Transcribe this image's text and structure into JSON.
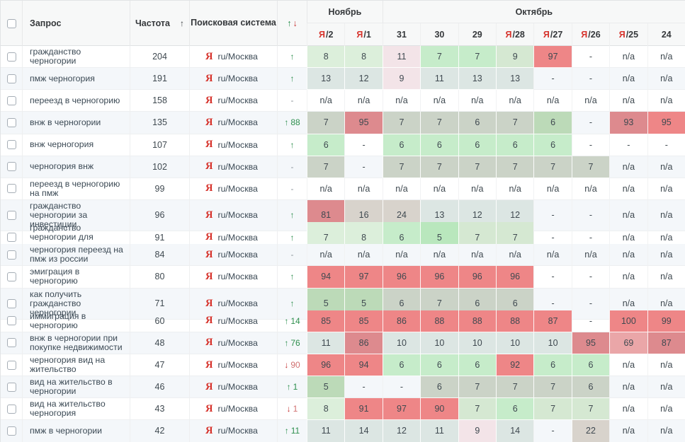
{
  "header": {
    "query_label": "Запрос",
    "frequency_label": "Частота",
    "frequency_sort_icon": "↑",
    "search_engine_label": "Поисковая система",
    "change_up_icon": "↑",
    "change_down_icon": "↓",
    "month_groups": [
      {
        "label": "Ноябрь",
        "span": 2
      },
      {
        "label": "Октябрь",
        "span": 8
      }
    ],
    "dates": [
      {
        "engine_prefix": "Я",
        "day": "/2"
      },
      {
        "engine_prefix": "Я",
        "day": "/1"
      },
      {
        "engine_prefix": "",
        "day": "31"
      },
      {
        "engine_prefix": "",
        "day": "30"
      },
      {
        "engine_prefix": "",
        "day": "29"
      },
      {
        "engine_prefix": "Я",
        "day": "/28"
      },
      {
        "engine_prefix": "Я",
        "day": "/27"
      },
      {
        "engine_prefix": "Я",
        "day": "/26"
      },
      {
        "engine_prefix": "Я",
        "day": "/25"
      },
      {
        "engine_prefix": "",
        "day": "24"
      }
    ]
  },
  "search_engine": {
    "icon": "Я",
    "region": "ru/Москва"
  },
  "colors": {
    "yandex_red": "#d6332c",
    "change_up_green": "#2e8f4e",
    "change_down_red": "#c43131",
    "cell_green_bright": "#b9e7bd",
    "cell_green_mint": "#c6ecca",
    "cell_green_pale": "#dcefdb",
    "cell_green_gray": "#cbd3c7",
    "cell_red": "#ee8687",
    "cell_red_muted": "#dd8a8e",
    "cell_red_light": "#eaa6a8",
    "cell_pink_pale": "#f3e4e8",
    "cell_blue_gray": "#dce6e3",
    "cell_gray_tan": "#d8d3cc",
    "row_stripe": "#f4f7fa"
  },
  "rows": [
    {
      "query": "гражданство черногории",
      "frequency": "204",
      "change": {
        "dir": "up",
        "symbol": "↑",
        "value": ""
      },
      "cells": [
        [
          "8",
          "g2"
        ],
        [
          "8",
          "g2"
        ],
        [
          "11",
          "p1"
        ],
        [
          "7",
          "g1"
        ],
        [
          "7",
          "g1"
        ],
        [
          "9",
          "g4"
        ],
        [
          "97",
          "r1"
        ],
        [
          "-",
          "w"
        ],
        [
          "n/a",
          "w"
        ],
        [
          "n/a",
          "w"
        ]
      ]
    },
    {
      "query": "пмж черногория",
      "frequency": "191",
      "change": {
        "dir": "up",
        "symbol": "↑",
        "value": ""
      },
      "cells": [
        [
          "13",
          "b1"
        ],
        [
          "12",
          "b1"
        ],
        [
          "9",
          "p1"
        ],
        [
          "11",
          "b1"
        ],
        [
          "13",
          "b1"
        ],
        [
          "13",
          "b1"
        ],
        [
          "-",
          "w"
        ],
        [
          "-",
          "w"
        ],
        [
          "n/a",
          "w"
        ],
        [
          "n/a",
          "w"
        ]
      ]
    },
    {
      "query": "переезд в черногорию",
      "frequency": "158",
      "change": {
        "dir": "none",
        "symbol": "-",
        "value": ""
      },
      "cells": [
        [
          "n/a",
          "w"
        ],
        [
          "n/a",
          "w"
        ],
        [
          "n/a",
          "w"
        ],
        [
          "n/a",
          "w"
        ],
        [
          "n/a",
          "w"
        ],
        [
          "n/a",
          "w"
        ],
        [
          "n/a",
          "w"
        ],
        [
          "n/a",
          "w"
        ],
        [
          "n/a",
          "w"
        ],
        [
          "n/a",
          "w"
        ]
      ]
    },
    {
      "query": "внж в черногории",
      "frequency": "135",
      "change": {
        "dir": "up",
        "symbol": "↑",
        "value": "88"
      },
      "cells": [
        [
          "7",
          "g3"
        ],
        [
          "95",
          "r2"
        ],
        [
          "7",
          "g3"
        ],
        [
          "7",
          "g3"
        ],
        [
          "6",
          "g3"
        ],
        [
          "7",
          "g3"
        ],
        [
          "6",
          "g5"
        ],
        [
          "-",
          "w"
        ],
        [
          "93",
          "r2"
        ],
        [
          "95",
          "r1"
        ]
      ]
    },
    {
      "query": "внж черногория",
      "frequency": "107",
      "change": {
        "dir": "up",
        "symbol": "↑",
        "value": ""
      },
      "cells": [
        [
          "6",
          "g1"
        ],
        [
          "-",
          "w"
        ],
        [
          "6",
          "g1"
        ],
        [
          "6",
          "g1"
        ],
        [
          "6",
          "g1"
        ],
        [
          "6",
          "g1"
        ],
        [
          "6",
          "g1"
        ],
        [
          "-",
          "w"
        ],
        [
          "-",
          "w"
        ],
        [
          "-",
          "w"
        ]
      ]
    },
    {
      "query": "черногория внж",
      "frequency": "102",
      "change": {
        "dir": "none",
        "symbol": "-",
        "value": ""
      },
      "cells": [
        [
          "7",
          "g3"
        ],
        [
          "-",
          "w"
        ],
        [
          "7",
          "g3"
        ],
        [
          "7",
          "g3"
        ],
        [
          "7",
          "g3"
        ],
        [
          "7",
          "g3"
        ],
        [
          "7",
          "g3"
        ],
        [
          "7",
          "g3"
        ],
        [
          "n/a",
          "w"
        ],
        [
          "n/a",
          "w"
        ]
      ]
    },
    {
      "query": "переезд в черногорию на пмж",
      "frequency": "99",
      "change": {
        "dir": "none",
        "symbol": "-",
        "value": ""
      },
      "cells": [
        [
          "n/a",
          "w"
        ],
        [
          "n/a",
          "w"
        ],
        [
          "n/a",
          "w"
        ],
        [
          "n/a",
          "w"
        ],
        [
          "n/a",
          "w"
        ],
        [
          "n/a",
          "w"
        ],
        [
          "n/a",
          "w"
        ],
        [
          "n/a",
          "w"
        ],
        [
          "n/a",
          "w"
        ],
        [
          "n/a",
          "w"
        ]
      ]
    },
    {
      "query": "гражданство черногории за инвестиции",
      "frequency": "96",
      "change": {
        "dir": "up",
        "symbol": "↑",
        "value": ""
      },
      "cells": [
        [
          "81",
          "r2"
        ],
        [
          "16",
          "gr"
        ],
        [
          "24",
          "gr"
        ],
        [
          "13",
          "b1"
        ],
        [
          "12",
          "b1"
        ],
        [
          "12",
          "b1"
        ],
        [
          "-",
          "w"
        ],
        [
          "-",
          "w"
        ],
        [
          "n/a",
          "w"
        ],
        [
          "n/a",
          "w"
        ]
      ]
    },
    {
      "query": "гражданство черногории для россиян",
      "frequency": "91",
      "change": {
        "dir": "up",
        "symbol": "↑",
        "value": ""
      },
      "cells": [
        [
          "7",
          "g2"
        ],
        [
          "8",
          "g2"
        ],
        [
          "6",
          "g1"
        ],
        [
          "5",
          "g0"
        ],
        [
          "7",
          "g4"
        ],
        [
          "7",
          "g4"
        ],
        [
          "-",
          "w"
        ],
        [
          "-",
          "w"
        ],
        [
          "n/a",
          "w"
        ],
        [
          "n/a",
          "w"
        ]
      ]
    },
    {
      "query": "черногория переезд на пмж из россии",
      "frequency": "84",
      "change": {
        "dir": "none",
        "symbol": "-",
        "value": ""
      },
      "cells": [
        [
          "n/a",
          "w"
        ],
        [
          "n/a",
          "w"
        ],
        [
          "n/a",
          "w"
        ],
        [
          "n/a",
          "w"
        ],
        [
          "n/a",
          "w"
        ],
        [
          "n/a",
          "w"
        ],
        [
          "n/a",
          "w"
        ],
        [
          "n/a",
          "w"
        ],
        [
          "n/a",
          "w"
        ],
        [
          "n/a",
          "w"
        ]
      ]
    },
    {
      "query": "эмиграция в черногорию",
      "frequency": "80",
      "change": {
        "dir": "up",
        "symbol": "↑",
        "value": ""
      },
      "cells": [
        [
          "94",
          "r1"
        ],
        [
          "97",
          "r1"
        ],
        [
          "96",
          "r1"
        ],
        [
          "96",
          "r1"
        ],
        [
          "96",
          "r1"
        ],
        [
          "96",
          "r1"
        ],
        [
          "-",
          "w"
        ],
        [
          "-",
          "w"
        ],
        [
          "n/a",
          "w"
        ],
        [
          "n/a",
          "w"
        ]
      ]
    },
    {
      "query": "как получить гражданство черногории",
      "frequency": "71",
      "change": {
        "dir": "up",
        "symbol": "↑",
        "value": ""
      },
      "cells": [
        [
          "5",
          "g5"
        ],
        [
          "5",
          "g5"
        ],
        [
          "6",
          "g3"
        ],
        [
          "7",
          "g3"
        ],
        [
          "6",
          "g3"
        ],
        [
          "6",
          "g3"
        ],
        [
          "-",
          "w"
        ],
        [
          "-",
          "w"
        ],
        [
          "n/a",
          "w"
        ],
        [
          "n/a",
          "w"
        ]
      ]
    },
    {
      "query": "иммиграция в черногорию",
      "frequency": "60",
      "change": {
        "dir": "up",
        "symbol": "↑",
        "value": "14"
      },
      "cells": [
        [
          "85",
          "r1"
        ],
        [
          "85",
          "r1"
        ],
        [
          "86",
          "r1"
        ],
        [
          "88",
          "r1"
        ],
        [
          "88",
          "r1"
        ],
        [
          "88",
          "r1"
        ],
        [
          "87",
          "r1"
        ],
        [
          "-",
          "w"
        ],
        [
          "100",
          "r1"
        ],
        [
          "99",
          "r1"
        ]
      ]
    },
    {
      "query": "внж в черногории при покупке недвижимости",
      "frequency": "48",
      "change": {
        "dir": "up",
        "symbol": "↑",
        "value": "76"
      },
      "cells": [
        [
          "11",
          "b1"
        ],
        [
          "86",
          "r2"
        ],
        [
          "10",
          "b1"
        ],
        [
          "10",
          "b1"
        ],
        [
          "10",
          "b1"
        ],
        [
          "10",
          "b1"
        ],
        [
          "10",
          "b1"
        ],
        [
          "95",
          "r2"
        ],
        [
          "69",
          "r3"
        ],
        [
          "87",
          "r2"
        ]
      ]
    },
    {
      "query": "черногория вид на жительство",
      "frequency": "47",
      "change": {
        "dir": "down",
        "symbol": "↓",
        "value": "90"
      },
      "cells": [
        [
          "96",
          "r1"
        ],
        [
          "94",
          "r1"
        ],
        [
          "6",
          "g1"
        ],
        [
          "6",
          "g1"
        ],
        [
          "6",
          "g1"
        ],
        [
          "92",
          "r1"
        ],
        [
          "6",
          "g1"
        ],
        [
          "6",
          "g1"
        ],
        [
          "n/a",
          "w"
        ],
        [
          "n/a",
          "w"
        ]
      ]
    },
    {
      "query": "вид на жительство в черногории",
      "frequency": "46",
      "change": {
        "dir": "up",
        "symbol": "↑",
        "value": "1"
      },
      "cells": [
        [
          "5",
          "g5"
        ],
        [
          "-",
          "w"
        ],
        [
          "-",
          "w"
        ],
        [
          "6",
          "g3"
        ],
        [
          "7",
          "g3"
        ],
        [
          "7",
          "g3"
        ],
        [
          "7",
          "g3"
        ],
        [
          "6",
          "g3"
        ],
        [
          "n/a",
          "w"
        ],
        [
          "n/a",
          "w"
        ]
      ]
    },
    {
      "query": "вид на жительство черногория",
      "frequency": "43",
      "change": {
        "dir": "down",
        "symbol": "↓",
        "value": "1"
      },
      "cells": [
        [
          "8",
          "g2"
        ],
        [
          "91",
          "r1"
        ],
        [
          "97",
          "r1"
        ],
        [
          "90",
          "r1"
        ],
        [
          "7",
          "g4"
        ],
        [
          "6",
          "g1"
        ],
        [
          "7",
          "g4"
        ],
        [
          "7",
          "g4"
        ],
        [
          "n/a",
          "w"
        ],
        [
          "n/a",
          "w"
        ]
      ]
    },
    {
      "query": "пмж в черногории",
      "frequency": "42",
      "change": {
        "dir": "up",
        "symbol": "↑",
        "value": "11"
      },
      "cells": [
        [
          "11",
          "b1"
        ],
        [
          "14",
          "b1"
        ],
        [
          "12",
          "b1"
        ],
        [
          "11",
          "b1"
        ],
        [
          "9",
          "p1"
        ],
        [
          "14",
          "b1"
        ],
        [
          "-",
          "w"
        ],
        [
          "22",
          "gr"
        ],
        [
          "n/a",
          "w"
        ],
        [
          "n/a",
          "w"
        ]
      ]
    }
  ]
}
